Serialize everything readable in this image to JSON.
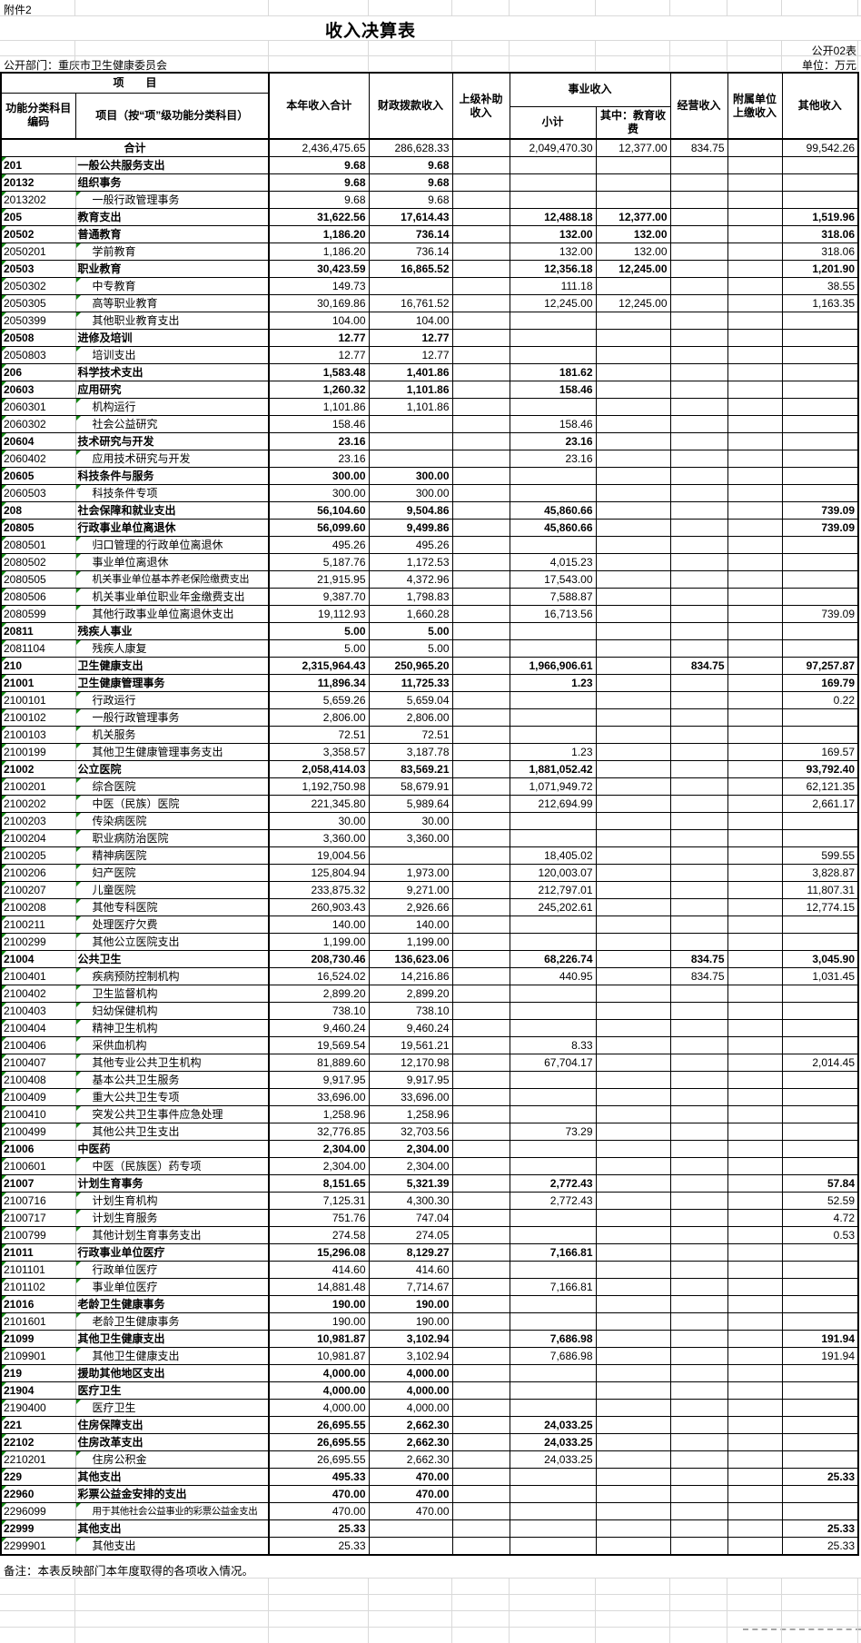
{
  "meta": {
    "attachment": "附件2",
    "title": "收入决算表",
    "sheet_code": "公开02表",
    "department_label": "公开部门：重庆市卫生健康委员会",
    "unit_label": "单位：万元",
    "note": "备注：本表反映部门本年度取得的各项收入情况。"
  },
  "header": {
    "project_group": "项　　目",
    "code": "功能分类科目编码",
    "project": "项目（按“项”级功能分类科目）",
    "total": "本年收入合计",
    "fiscal": "财政拨款收入",
    "superior": "上级补助收入",
    "business_group": "事业收入",
    "business_subtotal": "小计",
    "education_fee": "其中：教育收费",
    "operating": "经营收入",
    "affiliated": "附属单位上缴收入",
    "other": "其他收入"
  },
  "total_row": {
    "label": "合计",
    "values": [
      "2,436,475.65",
      "286,628.33",
      "",
      "2,049,470.30",
      "12,377.00",
      "834.75",
      "",
      "99,542.26"
    ]
  },
  "rows": [
    {
      "code": "201",
      "name": "一般公共服务支出",
      "level": "class",
      "values": [
        "9.68",
        "9.68",
        "",
        "",
        "",
        "",
        "",
        ""
      ]
    },
    {
      "code": "20132",
      "name": "组织事务",
      "level": "class",
      "values": [
        "9.68",
        "9.68",
        "",
        "",
        "",
        "",
        "",
        ""
      ]
    },
    {
      "code": "2013202",
      "name": "一般行政管理事务",
      "level": "item",
      "values": [
        "9.68",
        "9.68",
        "",
        "",
        "",
        "",
        "",
        ""
      ]
    },
    {
      "code": "205",
      "name": "教育支出",
      "level": "class",
      "values": [
        "31,622.56",
        "17,614.43",
        "",
        "12,488.18",
        "12,377.00",
        "",
        "",
        "1,519.96"
      ]
    },
    {
      "code": "20502",
      "name": "普通教育",
      "level": "class",
      "values": [
        "1,186.20",
        "736.14",
        "",
        "132.00",
        "132.00",
        "",
        "",
        "318.06"
      ]
    },
    {
      "code": "2050201",
      "name": "学前教育",
      "level": "item",
      "values": [
        "1,186.20",
        "736.14",
        "",
        "132.00",
        "132.00",
        "",
        "",
        "318.06"
      ]
    },
    {
      "code": "20503",
      "name": "职业教育",
      "level": "class",
      "values": [
        "30,423.59",
        "16,865.52",
        "",
        "12,356.18",
        "12,245.00",
        "",
        "",
        "1,201.90"
      ]
    },
    {
      "code": "2050302",
      "name": "中专教育",
      "level": "item",
      "values": [
        "149.73",
        "",
        "",
        "111.18",
        "",
        "",
        "",
        "38.55"
      ]
    },
    {
      "code": "2050305",
      "name": "高等职业教育",
      "level": "item",
      "values": [
        "30,169.86",
        "16,761.52",
        "",
        "12,245.00",
        "12,245.00",
        "",
        "",
        "1,163.35"
      ]
    },
    {
      "code": "2050399",
      "name": "其他职业教育支出",
      "level": "item",
      "values": [
        "104.00",
        "104.00",
        "",
        "",
        "",
        "",
        "",
        ""
      ]
    },
    {
      "code": "20508",
      "name": "进修及培训",
      "level": "class",
      "values": [
        "12.77",
        "12.77",
        "",
        "",
        "",
        "",
        "",
        ""
      ]
    },
    {
      "code": "2050803",
      "name": "培训支出",
      "level": "item",
      "values": [
        "12.77",
        "12.77",
        "",
        "",
        "",
        "",
        "",
        ""
      ]
    },
    {
      "code": "206",
      "name": "科学技术支出",
      "level": "class",
      "values": [
        "1,583.48",
        "1,401.86",
        "",
        "181.62",
        "",
        "",
        "",
        ""
      ]
    },
    {
      "code": "20603",
      "name": "应用研究",
      "level": "class",
      "values": [
        "1,260.32",
        "1,101.86",
        "",
        "158.46",
        "",
        "",
        "",
        ""
      ]
    },
    {
      "code": "2060301",
      "name": "机构运行",
      "level": "item",
      "values": [
        "1,101.86",
        "1,101.86",
        "",
        "",
        "",
        "",
        "",
        ""
      ]
    },
    {
      "code": "2060302",
      "name": "社会公益研究",
      "level": "item",
      "values": [
        "158.46",
        "",
        "",
        "158.46",
        "",
        "",
        "",
        ""
      ]
    },
    {
      "code": "20604",
      "name": "技术研究与开发",
      "level": "class",
      "values": [
        "23.16",
        "",
        "",
        "23.16",
        "",
        "",
        "",
        ""
      ]
    },
    {
      "code": "2060402",
      "name": "应用技术研究与开发",
      "level": "item",
      "values": [
        "23.16",
        "",
        "",
        "23.16",
        "",
        "",
        "",
        ""
      ]
    },
    {
      "code": "20605",
      "name": "科技条件与服务",
      "level": "class",
      "values": [
        "300.00",
        "300.00",
        "",
        "",
        "",
        "",
        "",
        ""
      ]
    },
    {
      "code": "2060503",
      "name": "科技条件专项",
      "level": "item",
      "values": [
        "300.00",
        "300.00",
        "",
        "",
        "",
        "",
        "",
        ""
      ]
    },
    {
      "code": "208",
      "name": "社会保障和就业支出",
      "level": "class",
      "values": [
        "56,104.60",
        "9,504.86",
        "",
        "45,860.66",
        "",
        "",
        "",
        "739.09"
      ]
    },
    {
      "code": "20805",
      "name": "行政事业单位离退休",
      "level": "class",
      "values": [
        "56,099.60",
        "9,499.86",
        "",
        "45,860.66",
        "",
        "",
        "",
        "739.09"
      ]
    },
    {
      "code": "2080501",
      "name": "归口管理的行政单位离退休",
      "level": "item",
      "values": [
        "495.26",
        "495.26",
        "",
        "",
        "",
        "",
        "",
        ""
      ]
    },
    {
      "code": "2080502",
      "name": "事业单位离退休",
      "level": "item",
      "values": [
        "5,187.76",
        "1,172.53",
        "",
        "4,015.23",
        "",
        "",
        "",
        ""
      ]
    },
    {
      "code": "2080505",
      "name": "机关事业单位基本养老保险缴费支出",
      "level": "item",
      "values": [
        "21,915.95",
        "4,372.96",
        "",
        "17,543.00",
        "",
        "",
        "",
        ""
      ]
    },
    {
      "code": "2080506",
      "name": "机关事业单位职业年金缴费支出",
      "level": "item",
      "values": [
        "9,387.70",
        "1,798.83",
        "",
        "7,588.87",
        "",
        "",
        "",
        ""
      ]
    },
    {
      "code": "2080599",
      "name": "其他行政事业单位离退休支出",
      "level": "item",
      "values": [
        "19,112.93",
        "1,660.28",
        "",
        "16,713.56",
        "",
        "",
        "",
        "739.09"
      ]
    },
    {
      "code": "20811",
      "name": "残疾人事业",
      "level": "class",
      "values": [
        "5.00",
        "5.00",
        "",
        "",
        "",
        "",
        "",
        ""
      ]
    },
    {
      "code": "2081104",
      "name": "残疾人康复",
      "level": "item",
      "values": [
        "5.00",
        "5.00",
        "",
        "",
        "",
        "",
        "",
        ""
      ]
    },
    {
      "code": "210",
      "name": "卫生健康支出",
      "level": "class",
      "values": [
        "2,315,964.43",
        "250,965.20",
        "",
        "1,966,906.61",
        "",
        "834.75",
        "",
        "97,257.87"
      ]
    },
    {
      "code": "21001",
      "name": "卫生健康管理事务",
      "level": "class",
      "values": [
        "11,896.34",
        "11,725.33",
        "",
        "1.23",
        "",
        "",
        "",
        "169.79"
      ]
    },
    {
      "code": "2100101",
      "name": "行政运行",
      "level": "item",
      "values": [
        "5,659.26",
        "5,659.04",
        "",
        "",
        "",
        "",
        "",
        "0.22"
      ]
    },
    {
      "code": "2100102",
      "name": "一般行政管理事务",
      "level": "item",
      "values": [
        "2,806.00",
        "2,806.00",
        "",
        "",
        "",
        "",
        "",
        ""
      ]
    },
    {
      "code": "2100103",
      "name": "机关服务",
      "level": "item",
      "values": [
        "72.51",
        "72.51",
        "",
        "",
        "",
        "",
        "",
        ""
      ]
    },
    {
      "code": "2100199",
      "name": "其他卫生健康管理事务支出",
      "level": "item",
      "values": [
        "3,358.57",
        "3,187.78",
        "",
        "1.23",
        "",
        "",
        "",
        "169.57"
      ]
    },
    {
      "code": "21002",
      "name": "公立医院",
      "level": "class",
      "values": [
        "2,058,414.03",
        "83,569.21",
        "",
        "1,881,052.42",
        "",
        "",
        "",
        "93,792.40"
      ]
    },
    {
      "code": "2100201",
      "name": "综合医院",
      "level": "item",
      "values": [
        "1,192,750.98",
        "58,679.91",
        "",
        "1,071,949.72",
        "",
        "",
        "",
        "62,121.35"
      ]
    },
    {
      "code": "2100202",
      "name": "中医（民族）医院",
      "level": "item",
      "values": [
        "221,345.80",
        "5,989.64",
        "",
        "212,694.99",
        "",
        "",
        "",
        "2,661.17"
      ]
    },
    {
      "code": "2100203",
      "name": "传染病医院",
      "level": "item",
      "values": [
        "30.00",
        "30.00",
        "",
        "",
        "",
        "",
        "",
        ""
      ]
    },
    {
      "code": "2100204",
      "name": "职业病防治医院",
      "level": "item",
      "values": [
        "3,360.00",
        "3,360.00",
        "",
        "",
        "",
        "",
        "",
        ""
      ]
    },
    {
      "code": "2100205",
      "name": "精神病医院",
      "level": "item",
      "values": [
        "19,004.56",
        "",
        "",
        "18,405.02",
        "",
        "",
        "",
        "599.55"
      ]
    },
    {
      "code": "2100206",
      "name": "妇产医院",
      "level": "item",
      "values": [
        "125,804.94",
        "1,973.00",
        "",
        "120,003.07",
        "",
        "",
        "",
        "3,828.87"
      ]
    },
    {
      "code": "2100207",
      "name": "儿童医院",
      "level": "item",
      "values": [
        "233,875.32",
        "9,271.00",
        "",
        "212,797.01",
        "",
        "",
        "",
        "11,807.31"
      ]
    },
    {
      "code": "2100208",
      "name": "其他专科医院",
      "level": "item",
      "values": [
        "260,903.43",
        "2,926.66",
        "",
        "245,202.61",
        "",
        "",
        "",
        "12,774.15"
      ]
    },
    {
      "code": "2100211",
      "name": "处理医疗欠费",
      "level": "item",
      "values": [
        "140.00",
        "140.00",
        "",
        "",
        "",
        "",
        "",
        ""
      ]
    },
    {
      "code": "2100299",
      "name": "其他公立医院支出",
      "level": "item",
      "values": [
        "1,199.00",
        "1,199.00",
        "",
        "",
        "",
        "",
        "",
        ""
      ]
    },
    {
      "code": "21004",
      "name": "公共卫生",
      "level": "class",
      "values": [
        "208,730.46",
        "136,623.06",
        "",
        "68,226.74",
        "",
        "834.75",
        "",
        "3,045.90"
      ]
    },
    {
      "code": "2100401",
      "name": "疾病预防控制机构",
      "level": "item",
      "values": [
        "16,524.02",
        "14,216.86",
        "",
        "440.95",
        "",
        "834.75",
        "",
        "1,031.45"
      ]
    },
    {
      "code": "2100402",
      "name": "卫生监督机构",
      "level": "item",
      "values": [
        "2,899.20",
        "2,899.20",
        "",
        "",
        "",
        "",
        "",
        ""
      ]
    },
    {
      "code": "2100403",
      "name": "妇幼保健机构",
      "level": "item",
      "values": [
        "738.10",
        "738.10",
        "",
        "",
        "",
        "",
        "",
        ""
      ]
    },
    {
      "code": "2100404",
      "name": "精神卫生机构",
      "level": "item",
      "values": [
        "9,460.24",
        "9,460.24",
        "",
        "",
        "",
        "",
        "",
        ""
      ]
    },
    {
      "code": "2100406",
      "name": "采供血机构",
      "level": "item",
      "values": [
        "19,569.54",
        "19,561.21",
        "",
        "8.33",
        "",
        "",
        "",
        ""
      ]
    },
    {
      "code": "2100407",
      "name": "其他专业公共卫生机构",
      "level": "item",
      "values": [
        "81,889.60",
        "12,170.98",
        "",
        "67,704.17",
        "",
        "",
        "",
        "2,014.45"
      ]
    },
    {
      "code": "2100408",
      "name": "基本公共卫生服务",
      "level": "item",
      "values": [
        "9,917.95",
        "9,917.95",
        "",
        "",
        "",
        "",
        "",
        ""
      ]
    },
    {
      "code": "2100409",
      "name": "重大公共卫生专项",
      "level": "item",
      "values": [
        "33,696.00",
        "33,696.00",
        "",
        "",
        "",
        "",
        "",
        ""
      ]
    },
    {
      "code": "2100410",
      "name": "突发公共卫生事件应急处理",
      "level": "item",
      "values": [
        "1,258.96",
        "1,258.96",
        "",
        "",
        "",
        "",
        "",
        ""
      ]
    },
    {
      "code": "2100499",
      "name": "其他公共卫生支出",
      "level": "item",
      "values": [
        "32,776.85",
        "32,703.56",
        "",
        "73.29",
        "",
        "",
        "",
        ""
      ]
    },
    {
      "code": "21006",
      "name": "中医药",
      "level": "class",
      "values": [
        "2,304.00",
        "2,304.00",
        "",
        "",
        "",
        "",
        "",
        ""
      ]
    },
    {
      "code": "2100601",
      "name": "中医（民族医）药专项",
      "level": "item",
      "values": [
        "2,304.00",
        "2,304.00",
        "",
        "",
        "",
        "",
        "",
        ""
      ]
    },
    {
      "code": "21007",
      "name": "计划生育事务",
      "level": "class",
      "values": [
        "8,151.65",
        "5,321.39",
        "",
        "2,772.43",
        "",
        "",
        "",
        "57.84"
      ]
    },
    {
      "code": "2100716",
      "name": "计划生育机构",
      "level": "item",
      "values": [
        "7,125.31",
        "4,300.30",
        "",
        "2,772.43",
        "",
        "",
        "",
        "52.59"
      ]
    },
    {
      "code": "2100717",
      "name": "计划生育服务",
      "level": "item",
      "values": [
        "751.76",
        "747.04",
        "",
        "",
        "",
        "",
        "",
        "4.72"
      ]
    },
    {
      "code": "2100799",
      "name": "其他计划生育事务支出",
      "level": "item",
      "values": [
        "274.58",
        "274.05",
        "",
        "",
        "",
        "",
        "",
        "0.53"
      ]
    },
    {
      "code": "21011",
      "name": "行政事业单位医疗",
      "level": "class",
      "values": [
        "15,296.08",
        "8,129.27",
        "",
        "7,166.81",
        "",
        "",
        "",
        ""
      ]
    },
    {
      "code": "2101101",
      "name": "行政单位医疗",
      "level": "item",
      "values": [
        "414.60",
        "414.60",
        "",
        "",
        "",
        "",
        "",
        ""
      ]
    },
    {
      "code": "2101102",
      "name": "事业单位医疗",
      "level": "item",
      "values": [
        "14,881.48",
        "7,714.67",
        "",
        "7,166.81",
        "",
        "",
        "",
        ""
      ]
    },
    {
      "code": "21016",
      "name": "老龄卫生健康事务",
      "level": "class",
      "values": [
        "190.00",
        "190.00",
        "",
        "",
        "",
        "",
        "",
        ""
      ]
    },
    {
      "code": "2101601",
      "name": "老龄卫生健康事务",
      "level": "item",
      "values": [
        "190.00",
        "190.00",
        "",
        "",
        "",
        "",
        "",
        ""
      ]
    },
    {
      "code": "21099",
      "name": "其他卫生健康支出",
      "level": "class",
      "values": [
        "10,981.87",
        "3,102.94",
        "",
        "7,686.98",
        "",
        "",
        "",
        "191.94"
      ]
    },
    {
      "code": "2109901",
      "name": "其他卫生健康支出",
      "level": "item",
      "values": [
        "10,981.87",
        "3,102.94",
        "",
        "7,686.98",
        "",
        "",
        "",
        "191.94"
      ]
    },
    {
      "code": "219",
      "name": "援助其他地区支出",
      "level": "class",
      "values": [
        "4,000.00",
        "4,000.00",
        "",
        "",
        "",
        "",
        "",
        ""
      ]
    },
    {
      "code": "21904",
      "name": "医疗卫生",
      "level": "class",
      "values": [
        "4,000.00",
        "4,000.00",
        "",
        "",
        "",
        "",
        "",
        ""
      ]
    },
    {
      "code": "2190400",
      "name": "医疗卫生",
      "level": "item",
      "values": [
        "4,000.00",
        "4,000.00",
        "",
        "",
        "",
        "",
        "",
        ""
      ]
    },
    {
      "code": "221",
      "name": "住房保障支出",
      "level": "class",
      "values": [
        "26,695.55",
        "2,662.30",
        "",
        "24,033.25",
        "",
        "",
        "",
        ""
      ]
    },
    {
      "code": "22102",
      "name": "住房改革支出",
      "level": "class",
      "values": [
        "26,695.55",
        "2,662.30",
        "",
        "24,033.25",
        "",
        "",
        "",
        ""
      ]
    },
    {
      "code": "2210201",
      "name": "住房公积金",
      "level": "item",
      "values": [
        "26,695.55",
        "2,662.30",
        "",
        "24,033.25",
        "",
        "",
        "",
        ""
      ]
    },
    {
      "code": "229",
      "name": "其他支出",
      "level": "class",
      "values": [
        "495.33",
        "470.00",
        "",
        "",
        "",
        "",
        "",
        "25.33"
      ]
    },
    {
      "code": "22960",
      "name": "彩票公益金安排的支出",
      "level": "class",
      "values": [
        "470.00",
        "470.00",
        "",
        "",
        "",
        "",
        "",
        ""
      ]
    },
    {
      "code": "2296099",
      "name": "用于其他社会公益事业的彩票公益金支出",
      "level": "item",
      "values": [
        "470.00",
        "470.00",
        "",
        "",
        "",
        "",
        "",
        ""
      ]
    },
    {
      "code": "22999",
      "name": "其他支出",
      "level": "class",
      "values": [
        "25.33",
        "",
        "",
        "",
        "",
        "",
        "",
        "25.33"
      ]
    },
    {
      "code": "2299901",
      "name": "其他支出",
      "level": "item",
      "values": [
        "25.33",
        "",
        "",
        "",
        "",
        "",
        "",
        "25.33"
      ]
    }
  ],
  "colors": {
    "triangle_green": "#128712",
    "grid_black": "#000000",
    "grid_faint": "#d9d9d9"
  }
}
